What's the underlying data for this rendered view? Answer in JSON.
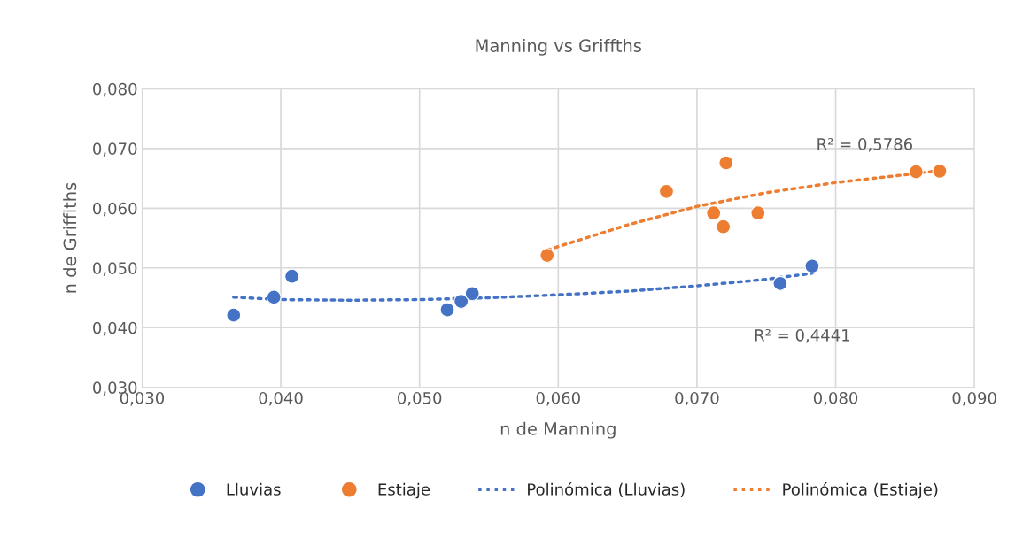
{
  "chart_data": {
    "type": "scatter",
    "title": "Manning vs Griffths",
    "xlabel": "n de Manning",
    "ylabel": "n de Griffiths",
    "series": [
      {
        "name": "Lluvias",
        "color": "#4472c4",
        "marker": "circle",
        "x": [
          0.0366,
          0.0395,
          0.0408,
          0.052,
          0.053,
          0.0538,
          0.076,
          0.0783
        ],
        "values": [
          0.0421,
          0.0451,
          0.0486,
          0.043,
          0.0444,
          0.0457,
          0.0474,
          0.0503
        ]
      },
      {
        "name": "Estiaje",
        "color": "#ed7d31",
        "marker": "circle",
        "x": [
          0.0592,
          0.0678,
          0.0712,
          0.0719,
          0.0721,
          0.0744,
          0.0858,
          0.0875
        ],
        "values": [
          0.0521,
          0.0628,
          0.0592,
          0.0569,
          0.0676,
          0.0592,
          0.0661,
          0.0662
        ]
      },
      {
        "name": "Polinómica (Lluvias)",
        "type": "line",
        "color": "#4472c4",
        "line_style": "dotted",
        "x": [
          0.0366,
          0.04,
          0.045,
          0.05,
          0.055,
          0.06,
          0.065,
          0.07,
          0.075,
          0.0783
        ],
        "values": [
          0.0451,
          0.0447,
          0.0446,
          0.0447,
          0.045,
          0.0455,
          0.0461,
          0.047,
          0.0481,
          0.0491
        ]
      },
      {
        "name": "Polinómica (Estiaje)",
        "type": "line",
        "color": "#ed7d31",
        "line_style": "dotted",
        "x": [
          0.0592,
          0.065,
          0.07,
          0.075,
          0.08,
          0.085,
          0.0875
        ],
        "values": [
          0.053,
          0.0572,
          0.0603,
          0.0626,
          0.0643,
          0.0656,
          0.0663
        ]
      }
    ],
    "annotations": [
      "R² = 0,5786",
      "R² = 0,4441"
    ],
    "xlim": [
      0.03,
      0.09
    ],
    "ylim": [
      0.03,
      0.08
    ],
    "xticks": [
      {
        "value": 0.03,
        "label": "0,030"
      },
      {
        "value": 0.04,
        "label": "0,040"
      },
      {
        "value": 0.05,
        "label": "0,050"
      },
      {
        "value": 0.06,
        "label": "0,060"
      },
      {
        "value": 0.07,
        "label": "0,070"
      },
      {
        "value": 0.08,
        "label": "0,080"
      },
      {
        "value": 0.09,
        "label": "0,090"
      }
    ],
    "yticks": [
      {
        "value": 0.03,
        "label": "0,030"
      },
      {
        "value": 0.04,
        "label": "0,040"
      },
      {
        "value": 0.05,
        "label": "0,050"
      },
      {
        "value": 0.06,
        "label": "0,060"
      },
      {
        "value": 0.07,
        "label": "0,070"
      },
      {
        "value": 0.08,
        "label": "0,080"
      }
    ],
    "grid": true,
    "legend": "bottom"
  }
}
